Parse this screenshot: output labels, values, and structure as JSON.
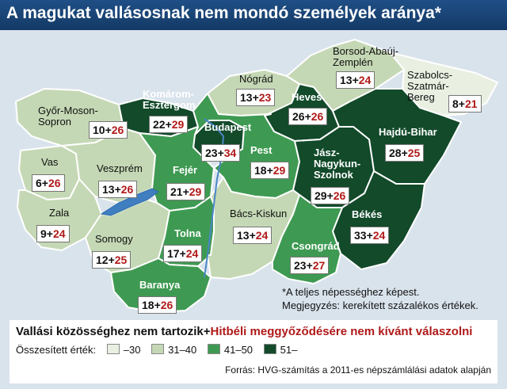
{
  "title": "A magukat vallásosnak nem mondó személyek aránya*",
  "colors": {
    "band_30": "#e9f0e2",
    "band_31_40": "#c5d8b5",
    "band_41_50": "#3e9a52",
    "band_51": "#124a2a",
    "lake": "#3f7fc0",
    "border": "#ffffff"
  },
  "counties": [
    {
      "id": "gyor",
      "name": "Győr-Moson-\nSopron",
      "value_a": "10",
      "value_b": "26",
      "band": "band_31_40"
    },
    {
      "id": "komarom",
      "name": "Komárom-\nEsztergom",
      "value_a": "22",
      "value_b": "29",
      "band": "band_51"
    },
    {
      "id": "nograd",
      "name": "Nógrád",
      "value_a": "13",
      "value_b": "23",
      "band": "band_31_40"
    },
    {
      "id": "borsod",
      "name": "Borsod-Abaúj-\nZemplén",
      "value_a": "13",
      "value_b": "24",
      "band": "band_31_40"
    },
    {
      "id": "szabolcs",
      "name": "Szabolcs-\nSzatmár-\nBereg",
      "value_a": "8",
      "value_b": "21",
      "band": "band_30"
    },
    {
      "id": "heves",
      "name": "Heves",
      "value_a": "26",
      "value_b": "26",
      "band": "band_51"
    },
    {
      "id": "hajdu",
      "name": "Hajdú-Bihar",
      "value_a": "28",
      "value_b": "25",
      "band": "band_51"
    },
    {
      "id": "budapest",
      "name": "Budapest",
      "value_a": "23",
      "value_b": "34",
      "band": "band_51"
    },
    {
      "id": "pest",
      "name": "Pest",
      "value_a": "18",
      "value_b": "29",
      "band": "band_41_50"
    },
    {
      "id": "vas",
      "name": "Vas",
      "value_a": "6",
      "value_b": "26",
      "band": "band_31_40"
    },
    {
      "id": "veszprem",
      "name": "Veszprém",
      "value_a": "13",
      "value_b": "26",
      "band": "band_31_40"
    },
    {
      "id": "fejer",
      "name": "Fejér",
      "value_a": "21",
      "value_b": "29",
      "band": "band_41_50"
    },
    {
      "id": "jasz",
      "name": "Jász-\nNagykun-\nSzolnok",
      "value_a": "29",
      "value_b": "26",
      "band": "band_51"
    },
    {
      "id": "zala",
      "name": "Zala",
      "value_a": "9",
      "value_b": "24",
      "band": "band_31_40"
    },
    {
      "id": "somogy",
      "name": "Somogy",
      "value_a": "12",
      "value_b": "25",
      "band": "band_31_40"
    },
    {
      "id": "tolna",
      "name": "Tolna",
      "value_a": "17",
      "value_b": "24",
      "band": "band_41_50"
    },
    {
      "id": "bacs",
      "name": "Bács-Kiskun",
      "value_a": "13",
      "value_b": "24",
      "band": "band_31_40"
    },
    {
      "id": "bekes",
      "name": "Békés",
      "value_a": "33",
      "value_b": "24",
      "band": "band_51"
    },
    {
      "id": "csongrad",
      "name": "Csongrád",
      "value_a": "23",
      "value_b": "27",
      "band": "band_41_50"
    },
    {
      "id": "baranya",
      "name": "Baranya",
      "value_a": "18",
      "value_b": "26",
      "band": "band_41_50"
    }
  ],
  "notes": {
    "footnote": "*A teljes népességhez képest.",
    "remark": "Megjegyzés: kerekített százalékos értékek."
  },
  "legend": {
    "title_part1": "Vallási közösséghez nem tartozik+",
    "title_part2": "Hitbéli meggyőződésére nem kívánt válaszolni",
    "label": "Összesített érték:",
    "bands": [
      {
        "band": "band_30",
        "label": "–30"
      },
      {
        "band": "band_31_40",
        "label": "31–40"
      },
      {
        "band": "band_41_50",
        "label": "41–50"
      },
      {
        "band": "band_51",
        "label": "51–"
      }
    ],
    "source": "Forrás: HVG-számítás a 2011-es népszámlálási adatok alapján"
  }
}
